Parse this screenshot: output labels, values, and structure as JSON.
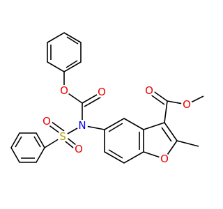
{
  "atom_labels": [
    "O",
    "O",
    "N",
    "S",
    "O",
    "O",
    "O",
    "O",
    "O"
  ]
}
